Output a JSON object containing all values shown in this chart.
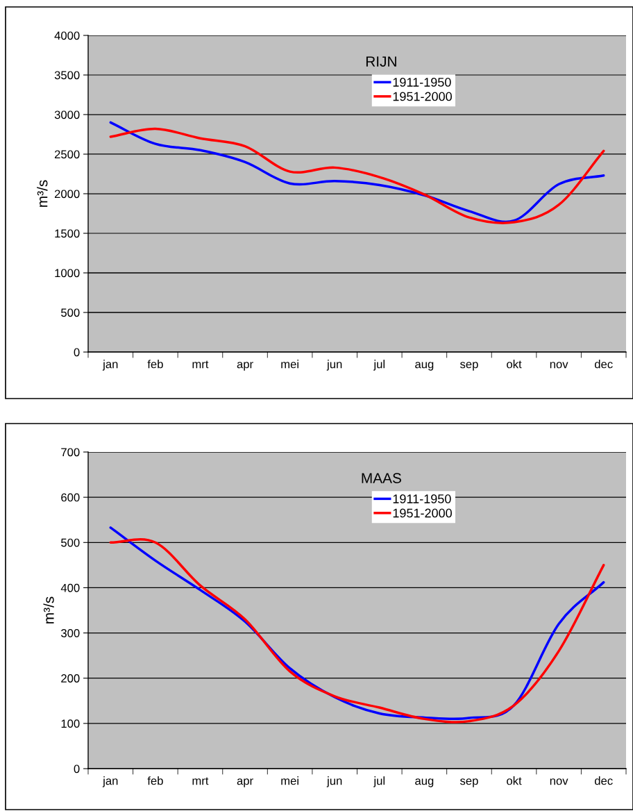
{
  "chart_data": [
    {
      "type": "line",
      "title": "RIJN",
      "ylabel": "m³/s",
      "categories": [
        "jan",
        "feb",
        "mrt",
        "apr",
        "mei",
        "jun",
        "jul",
        "aug",
        "sep",
        "okt",
        "nov",
        "dec"
      ],
      "ylim": [
        0,
        4000
      ],
      "yticks": [
        0,
        500,
        1000,
        1500,
        2000,
        2500,
        3000,
        3500,
        4000
      ],
      "grid": "y",
      "legend": "top",
      "line_style": "solid",
      "marker": "none",
      "series": [
        {
          "name": "1911-1950",
          "color": "#0000ff",
          "values": [
            2900,
            2630,
            2550,
            2400,
            2130,
            2160,
            2110,
            1980,
            1780,
            1660,
            2120,
            2230
          ]
        },
        {
          "name": "1951-2000",
          "color": "#ff0000",
          "values": [
            2720,
            2820,
            2700,
            2600,
            2280,
            2330,
            2210,
            1990,
            1700,
            1640,
            1860,
            2540
          ]
        }
      ]
    },
    {
      "type": "line",
      "title": "MAAS",
      "ylabel": "m³/s",
      "categories": [
        "jan",
        "feb",
        "mrt",
        "apr",
        "mei",
        "jun",
        "jul",
        "aug",
        "sep",
        "okt",
        "nov",
        "dec"
      ],
      "ylim": [
        0,
        700
      ],
      "yticks": [
        0,
        100,
        200,
        300,
        400,
        500,
        600,
        700
      ],
      "grid": "y",
      "legend": "top",
      "line_style": "solid",
      "marker": "none",
      "series": [
        {
          "name": "1911-1950",
          "color": "#0000ff",
          "values": [
            533,
            460,
            395,
            325,
            222,
            158,
            122,
            113,
            112,
            140,
            320,
            412
          ]
        },
        {
          "name": "1951-2000",
          "color": "#ff0000",
          "values": [
            500,
            500,
            405,
            330,
            215,
            160,
            135,
            110,
            105,
            140,
            260,
            450
          ]
        }
      ]
    }
  ]
}
